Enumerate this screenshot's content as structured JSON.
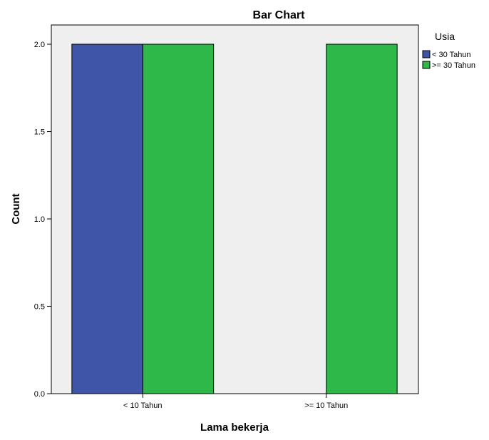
{
  "chart_data": {
    "type": "bar",
    "title": "Bar Chart",
    "xlabel": "Lama bekerja",
    "ylabel": "Count",
    "categories": [
      "< 10 Tahun",
      ">= 10 Tahun"
    ],
    "series": [
      {
        "name": "< 30 Tahun",
        "values": [
          2,
          0
        ],
        "color": "#3f56a8"
      },
      {
        "name": ">= 30 Tahun",
        "values": [
          2,
          2
        ],
        "color": "#2fb84a"
      }
    ],
    "ylim": [
      0,
      2
    ],
    "yticks": [
      "0.0",
      "0.5",
      "1.0",
      "1.5",
      "2.0"
    ],
    "legend": {
      "title": "Usia",
      "position": "top-right"
    },
    "grid": false,
    "plot_background": "#efefef"
  }
}
